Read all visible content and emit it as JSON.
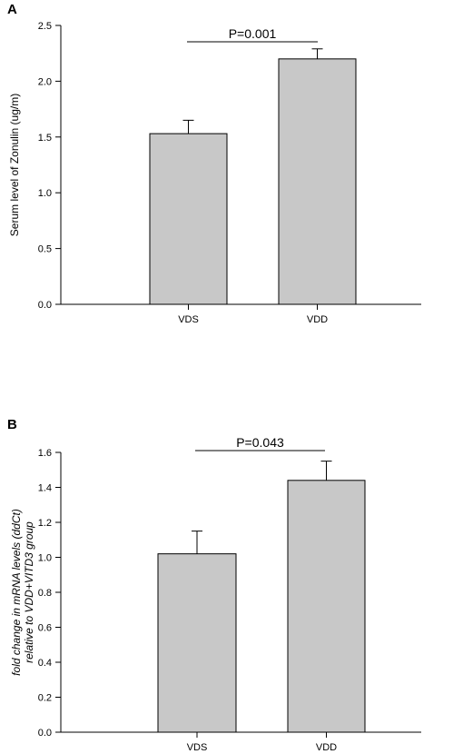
{
  "chart_data": [
    {
      "panel": "A",
      "type": "bar",
      "categories": [
        "VDS",
        "VDD"
      ],
      "values": [
        1.53,
        2.2
      ],
      "errors": [
        0.12,
        0.09
      ],
      "xlabel": "",
      "ylabel": "Serum level of Zonulin (ug/m)",
      "ylim": [
        0,
        2.5
      ],
      "yticks": [
        0.0,
        0.5,
        1.0,
        1.5,
        2.0,
        2.5
      ],
      "ytick_labels": [
        "0.0",
        "0.5",
        "1.0",
        "1.5",
        "2.0",
        "2.5"
      ],
      "annotation": "P=0.001",
      "bar_color": "#c8c8c8",
      "grid": false
    },
    {
      "panel": "B",
      "type": "bar",
      "categories": [
        "VDS",
        "VDD"
      ],
      "values": [
        1.02,
        1.44
      ],
      "errors": [
        0.13,
        0.11
      ],
      "xlabel": "",
      "ylabel_lines": [
        "fold change in mRNA levels (ddCt)",
        "relative to VDD+VITD3 group"
      ],
      "ylim": [
        0,
        1.6
      ],
      "yticks": [
        0.0,
        0.2,
        0.4,
        0.6,
        0.8,
        1.0,
        1.2,
        1.4,
        1.6
      ],
      "ytick_labels": [
        "0.0",
        "0.2",
        "0.4",
        "0.6",
        "0.8",
        "1.0",
        "1.2",
        "1.4",
        "1.6"
      ],
      "annotation": "P=0.043",
      "bar_color": "#c8c8c8",
      "grid": false
    }
  ]
}
